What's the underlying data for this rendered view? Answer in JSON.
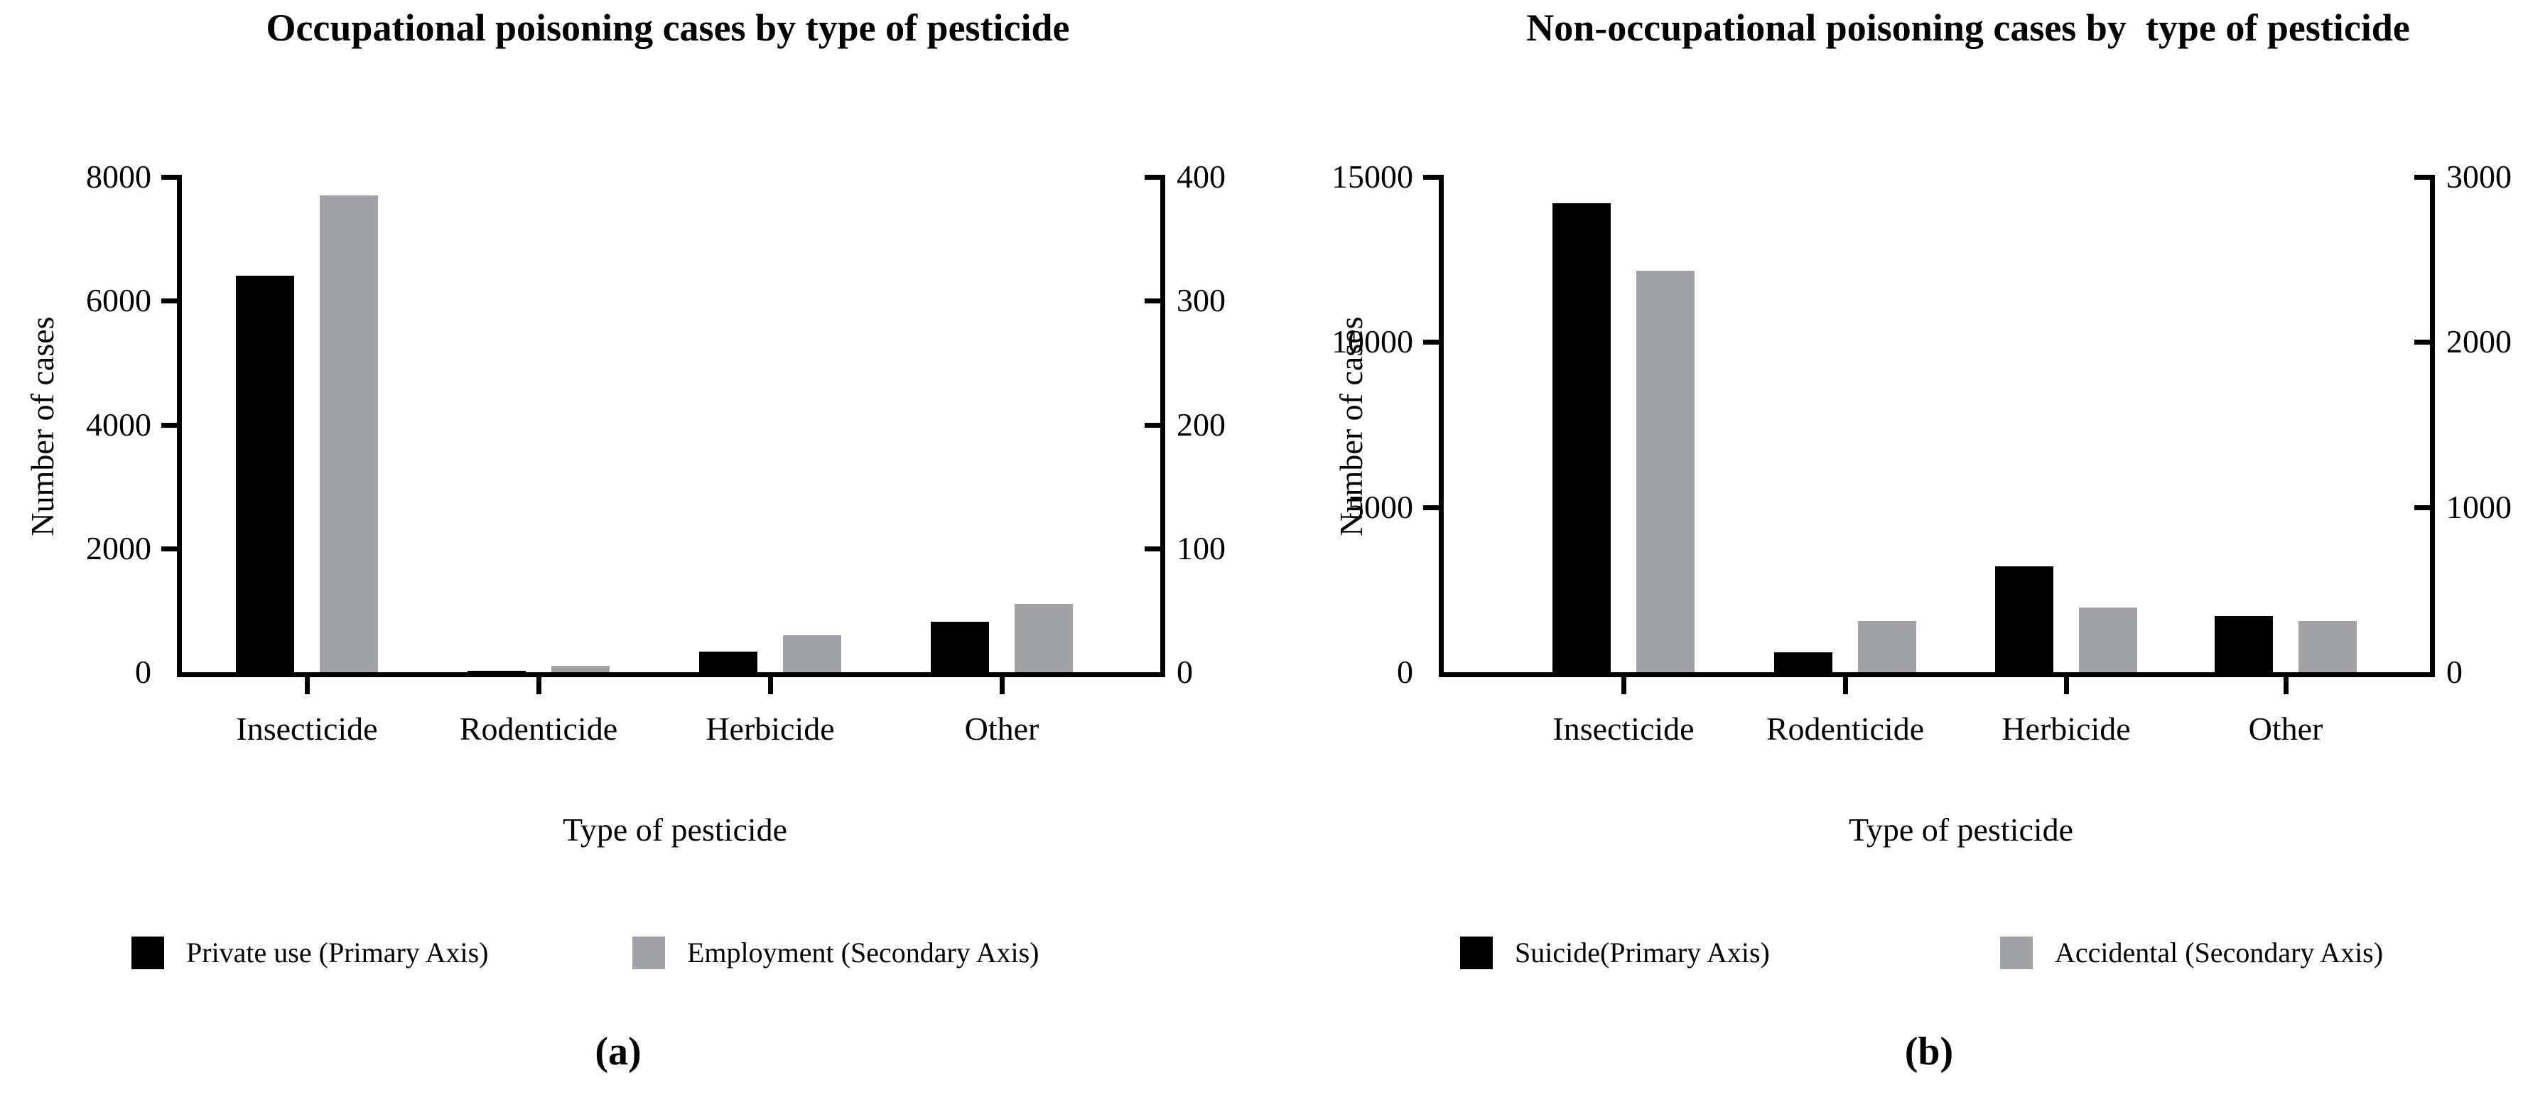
{
  "chart_data": [
    {
      "type": "bar",
      "panel_label": "(a)",
      "title": "Occupational poisoning cases by type of pesticide",
      "xlabel": "Type of pesticide",
      "ylabel": "Number of cases",
      "categories": [
        "Insecticide",
        "Rodenticide",
        "Herbicide",
        "Other"
      ],
      "primary_axis": {
        "side": "left",
        "ticks": [
          0,
          2000,
          4000,
          6000,
          8000
        ],
        "range": [
          0,
          8000
        ]
      },
      "secondary_axis": {
        "side": "right",
        "ticks": [
          0,
          100,
          200,
          300,
          400
        ],
        "range": [
          0,
          400
        ]
      },
      "grid": false,
      "legend_position": "bottom",
      "series": [
        {
          "name": "Private use (Primary Axis)",
          "axis": "primary",
          "color": "#000000",
          "values": [
            6400,
            20,
            330,
            820
          ]
        },
        {
          "name": "Employment (Secondary Axis)",
          "axis": "secondary",
          "color": "#a0a2a5",
          "values": [
            385,
            5,
            30,
            55
          ]
        }
      ]
    },
    {
      "type": "bar",
      "panel_label": "(b)",
      "title": "Non-occupational poisoning cases by  type of pesticide",
      "xlabel": "Type of pesticide",
      "ylabel": "Number of cases",
      "categories": [
        "Insecticide",
        "Rodenticide",
        "Herbicide",
        "Other"
      ],
      "primary_axis": {
        "side": "left",
        "ticks": [
          0,
          5000,
          10000,
          15000
        ],
        "range": [
          0,
          15000
        ]
      },
      "secondary_axis": {
        "side": "right",
        "ticks": [
          0,
          1000,
          2000,
          3000
        ],
        "range": [
          0,
          3000
        ]
      },
      "grid": false,
      "legend_position": "bottom",
      "series": [
        {
          "name": "Suicide(Primary Axis)",
          "axis": "primary",
          "color": "#000000",
          "values": [
            14200,
            600,
            3200,
            1700
          ]
        },
        {
          "name": "Accidental (Secondary Axis)",
          "axis": "secondary",
          "color": "#a0a2a5",
          "values": [
            2430,
            310,
            390,
            310
          ]
        }
      ]
    }
  ]
}
